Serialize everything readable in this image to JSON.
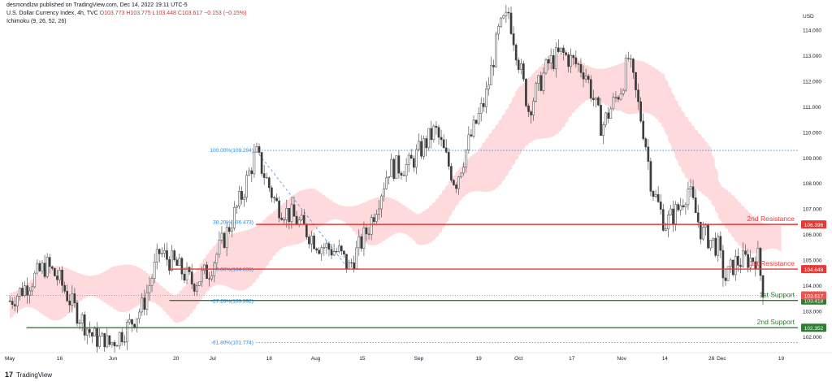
{
  "header": {
    "publisher": "desmondlzw published on TradingView.com, Dec 14, 2022 19:11 UTC-5",
    "symbol": "U.S. Dollar Currency Index, 4h, TVC",
    "ohlc": {
      "o": "O103.773",
      "h": "H103.775",
      "l": "L103.448",
      "c": "C103.617",
      "chg": "−0.153 (−0.15%)"
    },
    "indicator": "Ichimoku (9, 26, 52, 26)"
  },
  "footer": {
    "brand": "TradingView"
  },
  "colors": {
    "up": "#26a69a",
    "down": "#ef5350",
    "candle": "#3c3c3c",
    "resistance": "#e53935",
    "support": "#2e7d32",
    "fib": "#1e88e5",
    "cloud_bull": "#c8e6c9",
    "cloud_bear": "#ffcdd2"
  },
  "chart_data": {
    "type": "candlestick",
    "currency": "USD",
    "ylim": [
      101.5,
      114.8
    ],
    "yticks": [
      "102.000",
      "103.000",
      "104.000",
      "105.000",
      "106.000",
      "107.000",
      "108.000",
      "109.000",
      "110.000",
      "111.000",
      "112.000",
      "113.000",
      "114.000"
    ],
    "xlim": [
      "2022-04-30",
      "2022-12-24"
    ],
    "xticks": [
      {
        "date": "2022-05-01",
        "label": "May"
      },
      {
        "date": "2022-05-16",
        "label": "16"
      },
      {
        "date": "2022-06-01",
        "label": "Jun"
      },
      {
        "date": "2022-06-20",
        "label": "20"
      },
      {
        "date": "2022-07-01",
        "label": "Jul"
      },
      {
        "date": "2022-07-18",
        "label": "18"
      },
      {
        "date": "2022-08-01",
        "label": "Aug"
      },
      {
        "date": "2022-08-15",
        "label": "15"
      },
      {
        "date": "2022-09-01",
        "label": "Sep"
      },
      {
        "date": "2022-09-19",
        "label": "19"
      },
      {
        "date": "2022-10-01",
        "label": "Oct"
      },
      {
        "date": "2022-10-17",
        "label": "17"
      },
      {
        "date": "2022-11-01",
        "label": "Nov"
      },
      {
        "date": "2022-11-14",
        "label": "14"
      },
      {
        "date": "2022-11-28",
        "label": "28"
      },
      {
        "date": "2022-12-01",
        "label": "Dec"
      },
      {
        "date": "2022-12-19",
        "label": "19"
      }
    ],
    "price_path": [
      [
        "2022-05-01",
        103.4
      ],
      [
        "2022-05-06",
        104.0
      ],
      [
        "2022-05-12",
        104.8
      ],
      [
        "2022-05-16",
        104.2
      ],
      [
        "2022-05-20",
        103.2
      ],
      [
        "2022-05-26",
        102.0
      ],
      [
        "2022-05-31",
        101.7
      ],
      [
        "2022-06-05",
        102.3
      ],
      [
        "2022-06-10",
        103.2
      ],
      [
        "2022-06-15",
        105.3
      ],
      [
        "2022-06-20",
        104.8
      ],
      [
        "2022-06-25",
        104.1
      ],
      [
        "2022-06-30",
        104.6
      ],
      [
        "2022-07-05",
        106.0
      ],
      [
        "2022-07-10",
        107.6
      ],
      [
        "2022-07-14",
        109.2
      ],
      [
        "2022-07-20",
        107.2
      ],
      [
        "2022-07-26",
        106.6
      ],
      [
        "2022-08-02",
        105.6
      ],
      [
        "2022-08-08",
        105.3
      ],
      [
        "2022-08-11",
        104.7
      ],
      [
        "2022-08-17",
        106.3
      ],
      [
        "2022-08-23",
        108.6
      ],
      [
        "2022-08-29",
        108.7
      ],
      [
        "2022-09-06",
        110.1
      ],
      [
        "2022-09-12",
        108.0
      ],
      [
        "2022-09-16",
        109.6
      ],
      [
        "2022-09-21",
        111.3
      ],
      [
        "2022-09-25",
        113.9
      ],
      [
        "2022-09-28",
        114.7
      ],
      [
        "2022-10-04",
        110.9
      ],
      [
        "2022-10-10",
        112.7
      ],
      [
        "2022-10-14",
        113.1
      ],
      [
        "2022-10-21",
        112.4
      ],
      [
        "2022-10-26",
        110.2
      ],
      [
        "2022-11-01",
        111.8
      ],
      [
        "2022-11-03",
        112.9
      ],
      [
        "2022-11-08",
        109.8
      ],
      [
        "2022-11-10",
        107.9
      ],
      [
        "2022-11-14",
        106.4
      ],
      [
        "2022-11-18",
        107.0
      ],
      [
        "2022-11-21",
        107.8
      ],
      [
        "2022-11-25",
        106.1
      ],
      [
        "2022-11-30",
        105.5
      ],
      [
        "2022-12-02",
        104.2
      ],
      [
        "2022-12-05",
        104.9
      ],
      [
        "2022-12-08",
        105.0
      ],
      [
        "2022-12-12",
        105.1
      ],
      [
        "2022-12-13",
        104.2
      ],
      [
        "2022-12-14",
        103.6
      ]
    ],
    "cloud_path": [
      [
        "2022-05-01",
        102.7,
        104.0
      ],
      [
        "2022-05-16",
        103.0,
        104.5
      ],
      [
        "2022-06-01",
        103.4,
        104.8
      ],
      [
        "2022-06-20",
        102.8,
        103.9
      ],
      [
        "2022-07-01",
        103.6,
        105.2
      ],
      [
        "2022-07-18",
        104.6,
        107.0
      ],
      [
        "2022-08-01",
        106.5,
        107.6
      ],
      [
        "2022-08-15",
        106.0,
        107.3
      ],
      [
        "2022-09-01",
        105.6,
        107.0
      ],
      [
        "2022-09-19",
        107.6,
        109.0
      ],
      [
        "2022-10-01",
        108.8,
        112.0
      ],
      [
        "2022-10-17",
        110.8,
        113.0
      ],
      [
        "2022-11-01",
        111.2,
        112.6
      ],
      [
        "2022-11-14",
        110.0,
        112.4
      ],
      [
        "2022-11-28",
        107.0,
        109.2
      ],
      [
        "2022-12-01",
        106.2,
        107.6
      ],
      [
        "2022-12-19",
        105.0,
        106.4
      ]
    ],
    "levels": [
      {
        "name": "2nd Resistance",
        "price": 106.396,
        "label": "106.396",
        "kind": "resistance"
      },
      {
        "name": "1st Resistance",
        "price": 104.648,
        "label": "104.648",
        "kind": "resistance"
      },
      {
        "name": "1st Support",
        "price": 103.418,
        "label": "103.418",
        "kind": "support"
      },
      {
        "name": "2nd Support",
        "price": 102.352,
        "label": "102.352",
        "kind": "support"
      }
    ],
    "current_price": {
      "price": 103.617,
      "label": "103.617"
    },
    "fib_levels": [
      {
        "label": "100.00%(109.294)",
        "price": 109.294,
        "line": true
      },
      {
        "label": "38.20%(106.473)",
        "price": 106.473,
        "line": false
      },
      {
        "label": "0.00%(104.636)",
        "price": 104.636,
        "line": false
      },
      {
        "label": "-27.20%(103.392)",
        "price": 103.392,
        "line": false
      },
      {
        "label": "-61.80%(101.774)",
        "price": 101.774,
        "line": true
      }
    ],
    "fib_anchor": {
      "from": [
        "2022-07-14",
        109.294
      ],
      "to": [
        "2022-08-11",
        104.636
      ]
    }
  }
}
